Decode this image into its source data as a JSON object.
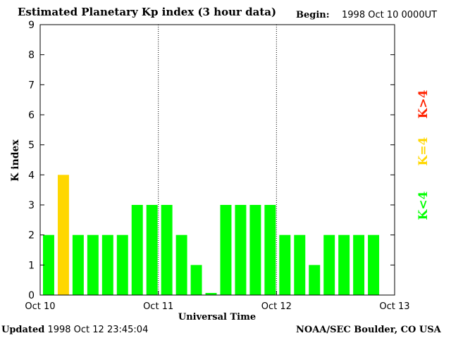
{
  "header": {
    "title": "Estimated Planetary Kp index (3 hour data)",
    "begin_label": "Begin:",
    "begin_value": "1998 Oct 10 0000UT"
  },
  "footer": {
    "updated_label": "Updated",
    "updated_value": "1998 Oct 12 23:45:04",
    "source": "NOAA/SEC Boulder, CO USA"
  },
  "legend": [
    {
      "label": "K>4",
      "color": "#ff2200"
    },
    {
      "label": "K=4",
      "color": "#ffd700"
    },
    {
      "label": "K<4",
      "color": "#00ff00"
    }
  ],
  "chart_data": {
    "type": "bar",
    "title": "Estimated Planetary Kp index (3 hour data)",
    "xlabel": "Universal Time",
    "ylabel": "K index",
    "ylim": [
      0,
      9
    ],
    "yticks": [
      "0",
      "1",
      "2",
      "3",
      "4",
      "5",
      "6",
      "7",
      "8",
      "9"
    ],
    "xticks": [
      "Oct 10",
      "Oct 11",
      "Oct 12",
      "Oct 13"
    ],
    "bar_slots": 24,
    "values": [
      2,
      4,
      2,
      2,
      2,
      2,
      3,
      3,
      3,
      2,
      1,
      0.07,
      3,
      3,
      3,
      3,
      2,
      2,
      1,
      2,
      2,
      2,
      2
    ],
    "colors": {
      "below": "#00ff00",
      "equal": "#ffd700",
      "above": "#ff2200"
    },
    "day_dividers": "dotted"
  }
}
